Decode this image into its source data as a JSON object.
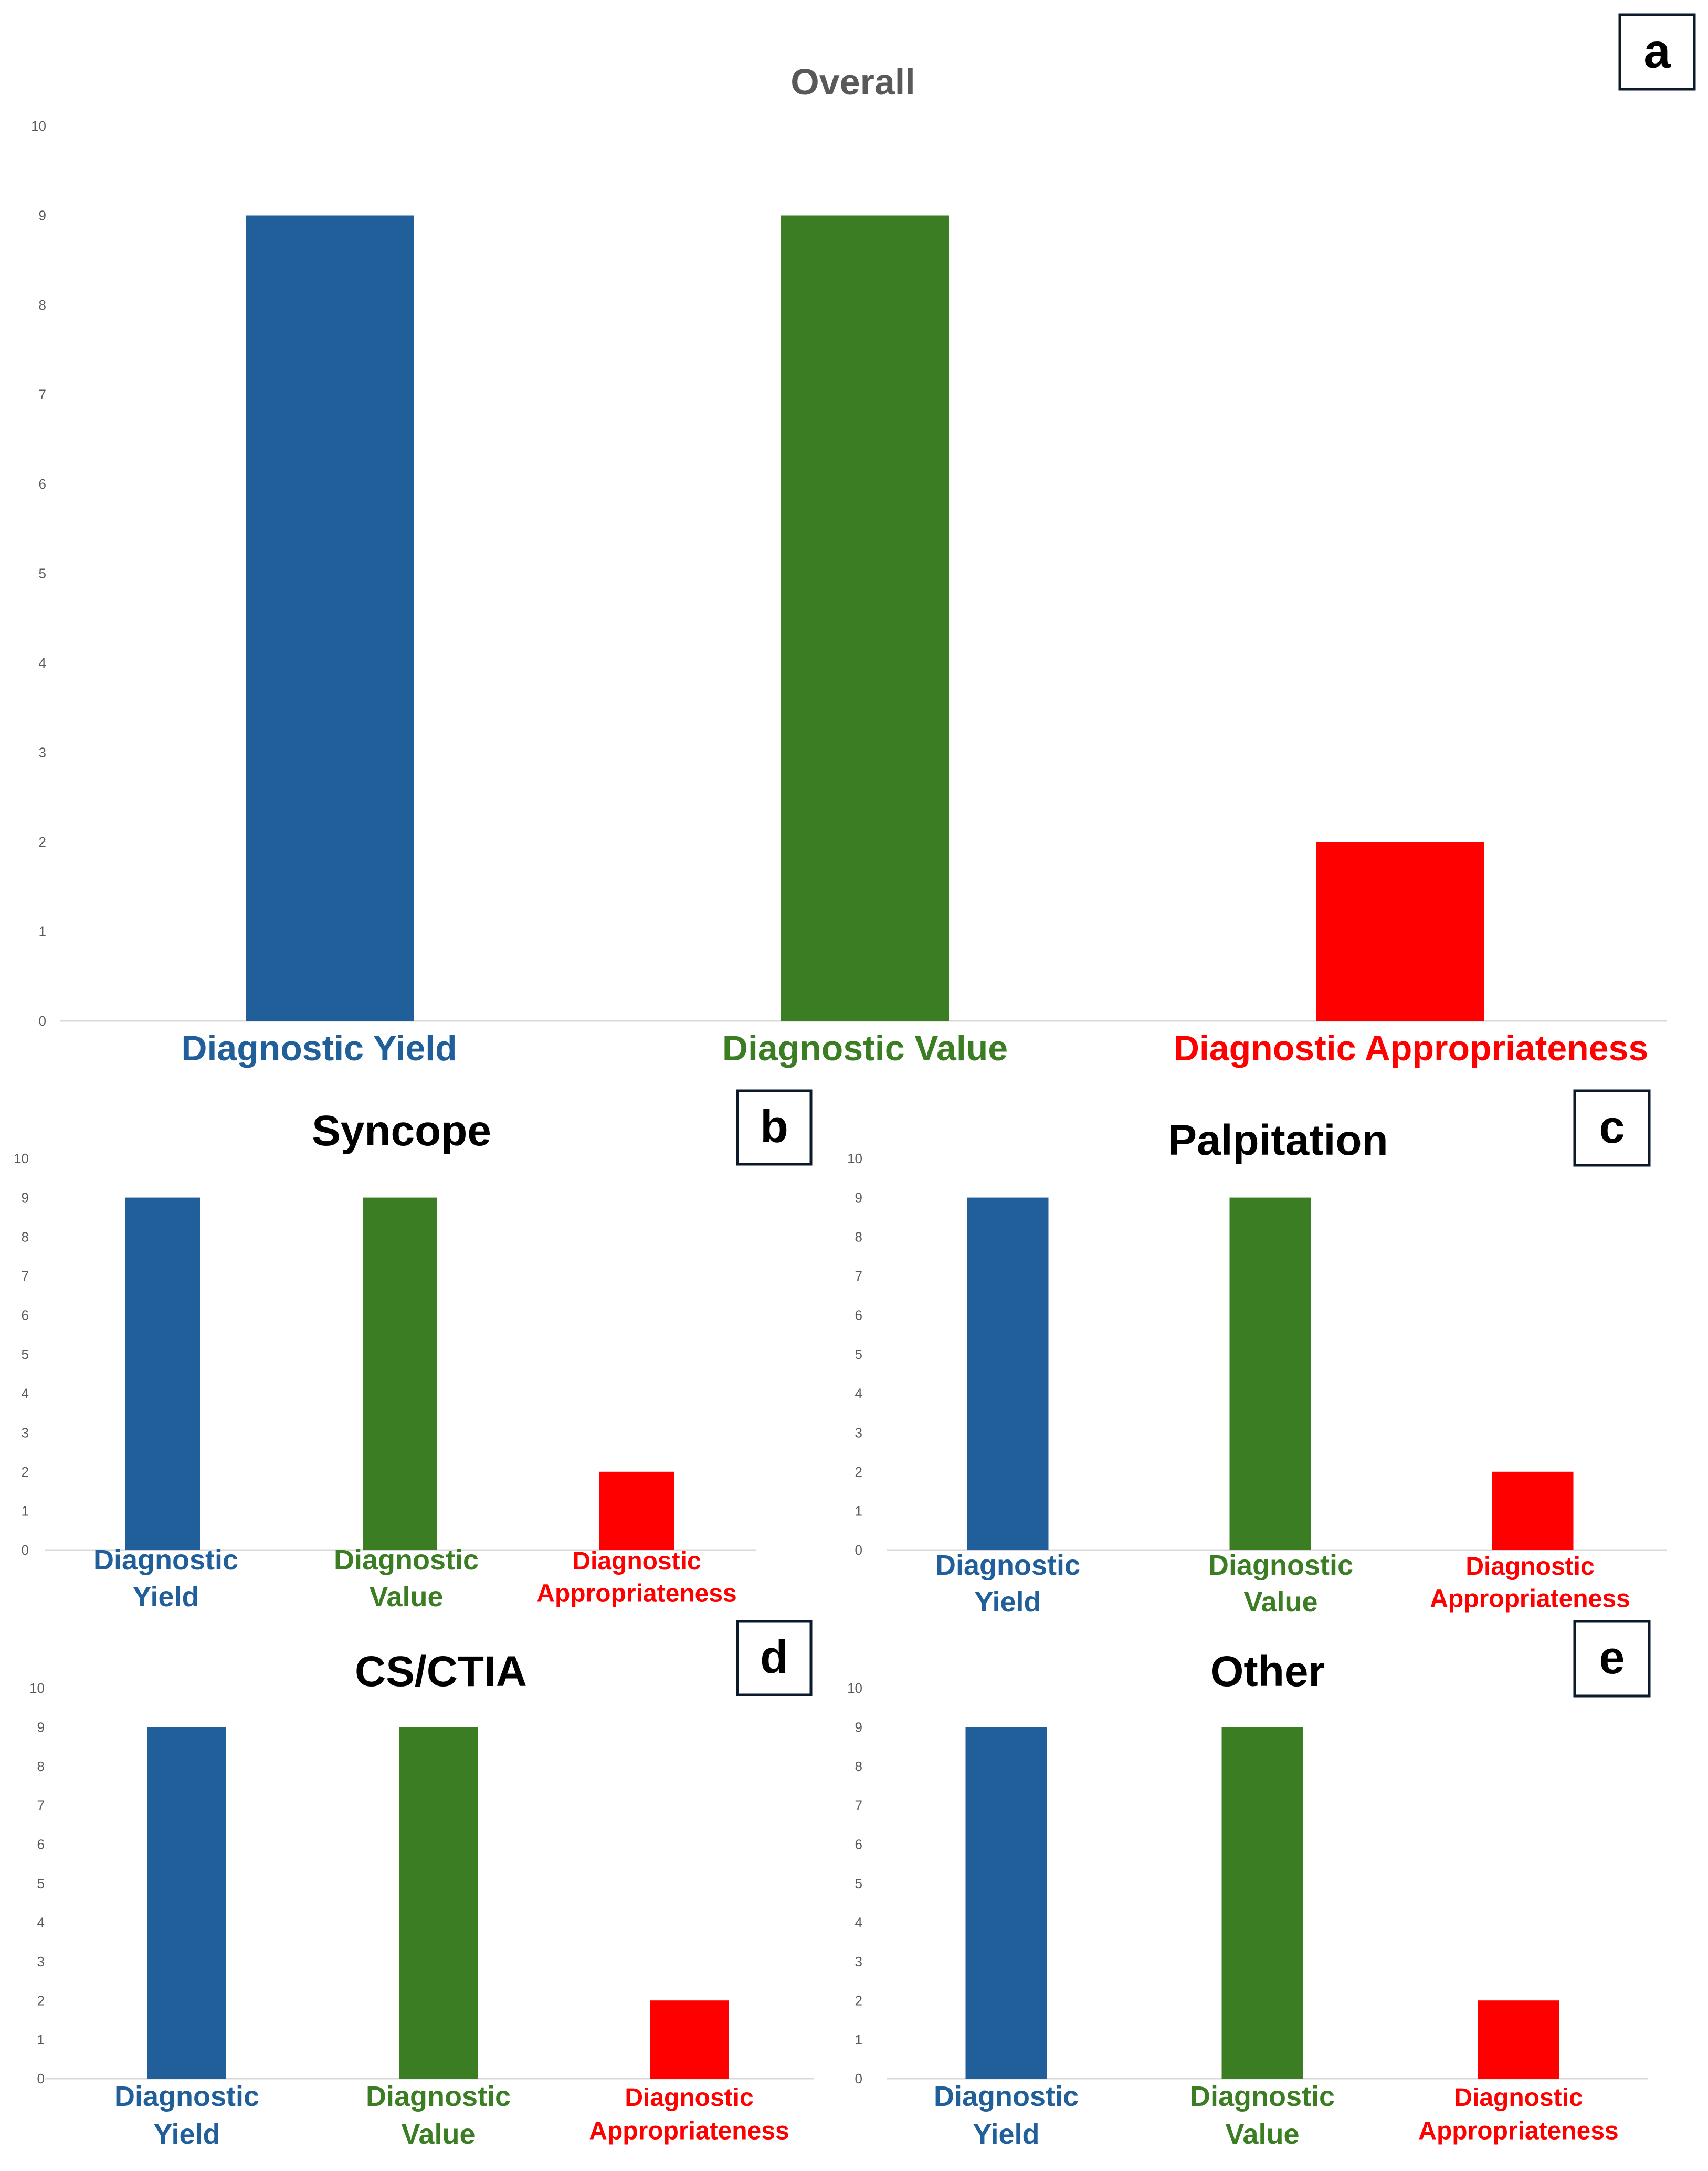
{
  "chart_data": [
    {
      "panel_label": "a",
      "type": "bar",
      "title": "Overall",
      "title_color": "#595959",
      "categories": [
        "Diagnostic Yield",
        "Diagnostic Value",
        "Diagnostic Appropriateness"
      ],
      "values": [
        9,
        9,
        2
      ],
      "colors": [
        "#215F9A",
        "#3B7D23",
        "#FF0000"
      ],
      "ylim": [
        0,
        10
      ],
      "yticks": [
        "0",
        "1",
        "2",
        "3",
        "4",
        "5",
        "6",
        "7",
        "8",
        "9",
        "10"
      ],
      "xlabel": "",
      "ylabel": "",
      "grid": false
    },
    {
      "panel_label": "b",
      "type": "bar",
      "title": "Syncope",
      "title_color": "#000000",
      "categories": [
        "Diagnostic Yield",
        "Diagnostic Value",
        "Diagnostic Appropriateness"
      ],
      "values": [
        9,
        9,
        2
      ],
      "colors": [
        "#215F9A",
        "#3B7D23",
        "#FF0000"
      ],
      "ylim": [
        0,
        10
      ],
      "yticks": [
        "0",
        "1",
        "2",
        "3",
        "4",
        "5",
        "6",
        "7",
        "8",
        "9",
        "10"
      ],
      "xlabel": "",
      "ylabel": "",
      "grid": false
    },
    {
      "panel_label": "c",
      "type": "bar",
      "title": "Palpitation",
      "title_color": "#000000",
      "categories": [
        "Diagnostic Yield",
        "Diagnostic Value",
        "Diagnostic Appropriateness"
      ],
      "values": [
        9,
        9,
        2
      ],
      "colors": [
        "#215F9A",
        "#3B7D23",
        "#FF0000"
      ],
      "ylim": [
        0,
        10
      ],
      "yticks": [
        "0",
        "1",
        "2",
        "3",
        "4",
        "5",
        "6",
        "7",
        "8",
        "9",
        "10"
      ],
      "xlabel": "",
      "ylabel": "",
      "grid": false
    },
    {
      "panel_label": "d",
      "type": "bar",
      "title": "CS/CTIA",
      "title_color": "#000000",
      "categories": [
        "Diagnostic Yield",
        "Diagnostic Value",
        "Diagnostic Appropriateness"
      ],
      "values": [
        9,
        9,
        2
      ],
      "colors": [
        "#215F9A",
        "#3B7D23",
        "#FF0000"
      ],
      "ylim": [
        0,
        10
      ],
      "yticks": [
        "0",
        "1",
        "2",
        "3",
        "4",
        "5",
        "6",
        "7",
        "8",
        "9",
        "10"
      ],
      "xlabel": "",
      "ylabel": "",
      "grid": false
    },
    {
      "panel_label": "e",
      "type": "bar",
      "title": "Other",
      "title_color": "#000000",
      "categories": [
        "Diagnostic Yield",
        "Diagnostic Value",
        "Diagnostic Appropriateness"
      ],
      "values": [
        9,
        9,
        2
      ],
      "colors": [
        "#215F9A",
        "#3B7D23",
        "#FF0000"
      ],
      "ylim": [
        0,
        10
      ],
      "yticks": [
        "0",
        "1",
        "2",
        "3",
        "4",
        "5",
        "6",
        "7",
        "8",
        "9",
        "10"
      ],
      "xlabel": "",
      "ylabel": "",
      "grid": false
    }
  ]
}
